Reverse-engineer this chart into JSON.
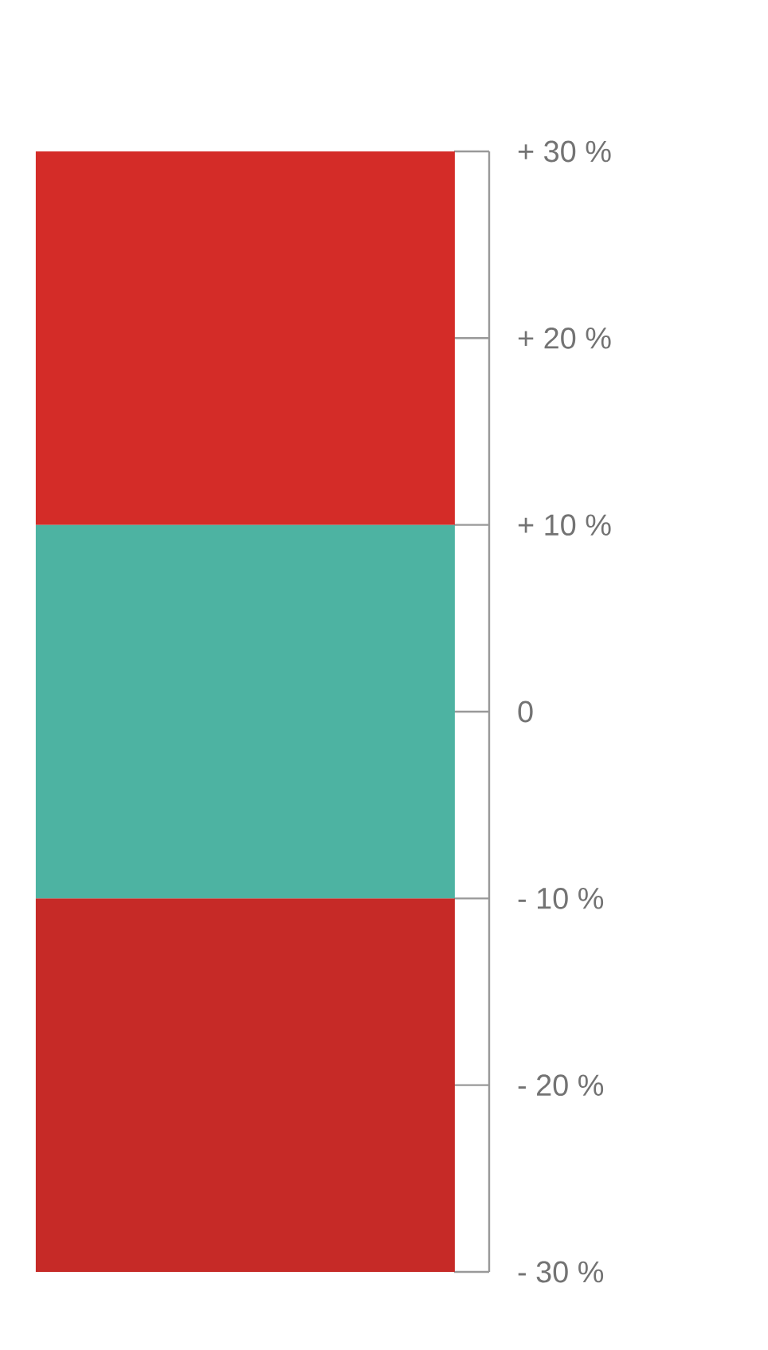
{
  "chart_data": {
    "type": "bar",
    "stacked": true,
    "categories": [
      null
    ],
    "series": [
      {
        "color": "#4db3a2",
        "values": [
          10
        ]
      },
      {
        "color": "#d42c28",
        "values": [
          20
        ]
      },
      {
        "color": "#4db3a2",
        "values": [
          -10
        ]
      },
      {
        "color": "#c62a27",
        "values": [
          -20
        ]
      }
    ],
    "ylim": [
      -30,
      30
    ],
    "yticks": [
      {
        "value": 30,
        "label": "+ 30 %"
      },
      {
        "value": 20,
        "label": "+ 20 %"
      },
      {
        "value": 10,
        "label": "+ 10 %"
      },
      0,
      {
        "value": -10,
        "label": "- 10 %"
      },
      {
        "value": -20,
        "label": "- 20 %"
      },
      {
        "value": -30,
        "label": "- 30 %"
      }
    ],
    "grid": false
  }
}
